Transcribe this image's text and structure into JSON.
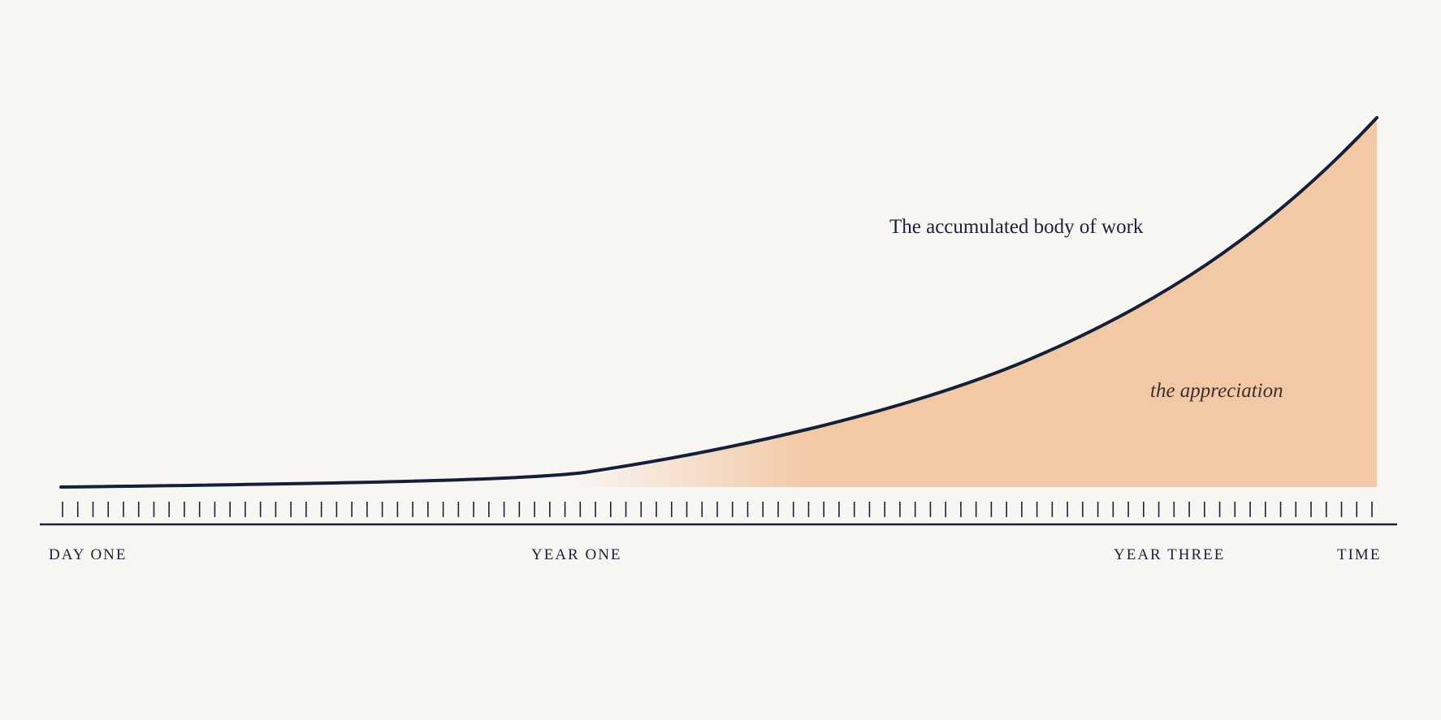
{
  "annotations": {
    "curve_label": "The accumulated body of work",
    "area_label": "the appreciation"
  },
  "axis_labels": [
    "DAY ONE",
    "YEAR ONE",
    "YEAR THREE",
    "TIME"
  ]
}
